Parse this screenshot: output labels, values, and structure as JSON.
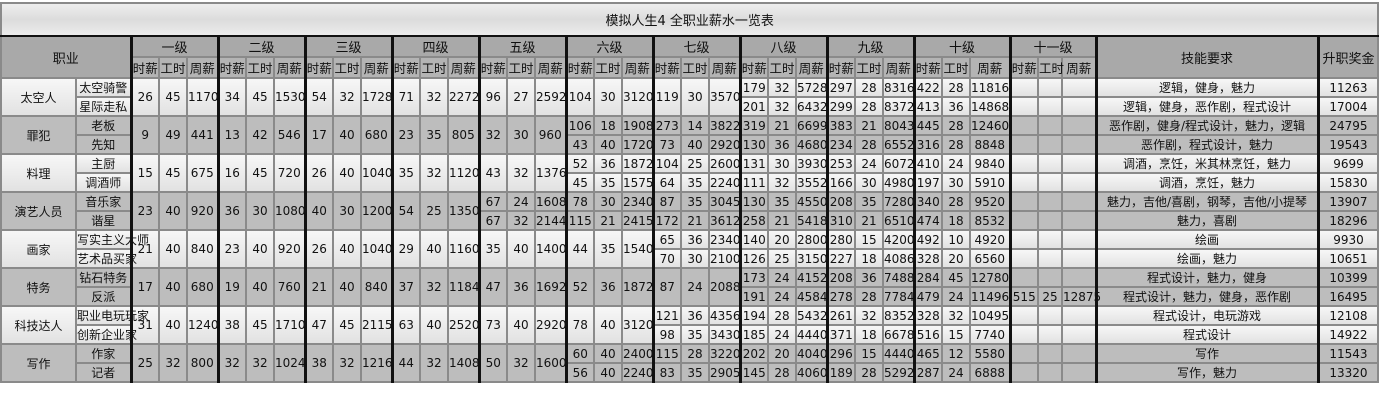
{
  "title": "模拟人生4 全职业薪水一览表",
  "headers": {
    "career": "职业",
    "levels": [
      "一级",
      "二级",
      "三级",
      "四级",
      "五级",
      "六级",
      "七级",
      "八级",
      "九级",
      "十级",
      "十一级"
    ],
    "sub": [
      "时薪",
      "工时",
      "周薪"
    ],
    "skills": "技能要求",
    "bonus": "升职奖金"
  },
  "careers": [
    {
      "name": "太空人",
      "jobs": [
        "太空骑警",
        "星际走私"
      ],
      "levels": [
        [
          [
            26,
            45,
            1170
          ]
        ],
        [
          [
            34,
            45,
            1530
          ]
        ],
        [
          [
            54,
            32,
            1728
          ]
        ],
        [
          [
            71,
            32,
            2272
          ]
        ],
        [
          [
            96,
            27,
            2592
          ]
        ],
        [
          [
            104,
            30,
            3120
          ]
        ],
        [
          [
            119,
            30,
            3570
          ]
        ],
        [
          [
            179,
            32,
            5728
          ],
          [
            201,
            32,
            6432
          ]
        ],
        [
          [
            297,
            28,
            8316
          ],
          [
            299,
            28,
            8372
          ]
        ],
        [
          [
            422,
            28,
            11816
          ],
          [
            413,
            36,
            14868
          ]
        ],
        [
          [],
          []
        ]
      ],
      "skills": [
        "逻辑，健身，魅力",
        "逻辑，健身，恶作剧，程式设计"
      ],
      "bonus": [
        "11263",
        "17004"
      ]
    },
    {
      "name": "罪犯",
      "jobs": [
        "老板",
        "先知"
      ],
      "levels": [
        [
          [
            9,
            49,
            441
          ]
        ],
        [
          [
            13,
            42,
            546
          ]
        ],
        [
          [
            17,
            40,
            680
          ]
        ],
        [
          [
            23,
            35,
            805
          ]
        ],
        [
          [
            32,
            30,
            960
          ]
        ],
        [
          [
            106,
            18,
            1908
          ],
          [
            43,
            40,
            1720
          ]
        ],
        [
          [
            273,
            14,
            3822
          ],
          [
            73,
            40,
            2920
          ]
        ],
        [
          [
            319,
            21,
            6699
          ],
          [
            130,
            36,
            4680
          ]
        ],
        [
          [
            383,
            21,
            8043
          ],
          [
            234,
            28,
            6552
          ]
        ],
        [
          [
            445,
            28,
            12460
          ],
          [
            316,
            28,
            8848
          ]
        ],
        [
          [],
          []
        ]
      ],
      "skills": [
        "恶作剧，健身/程式设计，魅力，逻辑",
        "恶作剧，程式设计，魅力"
      ],
      "bonus": [
        "24795",
        "19543"
      ]
    },
    {
      "name": "料理",
      "jobs": [
        "主厨",
        "调酒师"
      ],
      "levels": [
        [
          [
            15,
            45,
            675
          ]
        ],
        [
          [
            16,
            45,
            720
          ]
        ],
        [
          [
            26,
            40,
            1040
          ]
        ],
        [
          [
            35,
            32,
            1120
          ]
        ],
        [
          [
            43,
            32,
            1376
          ]
        ],
        [
          [
            52,
            36,
            1872
          ],
          [
            45,
            35,
            1575
          ]
        ],
        [
          [
            104,
            25,
            2600
          ],
          [
            64,
            35,
            2240
          ]
        ],
        [
          [
            131,
            30,
            3930
          ],
          [
            111,
            32,
            3552
          ]
        ],
        [
          [
            253,
            24,
            6072
          ],
          [
            166,
            30,
            4980
          ]
        ],
        [
          [
            410,
            24,
            9840
          ],
          [
            197,
            30,
            5910
          ]
        ],
        [
          [],
          []
        ]
      ],
      "skills": [
        "调酒，烹饪，米其林烹饪，魅力",
        "调酒，烹饪，魅力"
      ],
      "bonus": [
        "9699",
        "15830"
      ]
    },
    {
      "name": "演艺人员",
      "jobs": [
        "音乐家",
        "谐星"
      ],
      "levels": [
        [
          [
            23,
            40,
            920
          ]
        ],
        [
          [
            36,
            30,
            1080
          ]
        ],
        [
          [
            40,
            30,
            1200
          ]
        ],
        [
          [
            54,
            25,
            1350
          ]
        ],
        [
          [
            67,
            24,
            1608
          ],
          [
            67,
            32,
            2144
          ]
        ],
        [
          [
            78,
            30,
            2340
          ],
          [
            115,
            21,
            2415
          ]
        ],
        [
          [
            87,
            35,
            3045
          ],
          [
            172,
            21,
            3612
          ]
        ],
        [
          [
            130,
            35,
            4550
          ],
          [
            258,
            21,
            5418
          ]
        ],
        [
          [
            208,
            35,
            7280
          ],
          [
            310,
            21,
            6510
          ]
        ],
        [
          [
            340,
            28,
            9520
          ],
          [
            474,
            18,
            8532
          ]
        ],
        [
          [],
          []
        ]
      ],
      "skills": [
        "魅力，吉他/喜剧，钢琴，吉他/小提琴",
        "魅力，喜剧"
      ],
      "bonus": [
        "13907",
        "18296"
      ]
    },
    {
      "name": "画家",
      "jobs": [
        "写实主义大师",
        "艺术品买家"
      ],
      "levels": [
        [
          [
            21,
            40,
            840
          ]
        ],
        [
          [
            23,
            40,
            920
          ]
        ],
        [
          [
            26,
            40,
            1040
          ]
        ],
        [
          [
            29,
            40,
            1160
          ]
        ],
        [
          [
            35,
            40,
            1400
          ]
        ],
        [
          [
            44,
            35,
            1540
          ]
        ],
        [
          [
            65,
            36,
            2340
          ],
          [
            70,
            30,
            2100
          ]
        ],
        [
          [
            140,
            20,
            2800
          ],
          [
            126,
            25,
            3150
          ]
        ],
        [
          [
            280,
            15,
            4200
          ],
          [
            227,
            18,
            4086
          ]
        ],
        [
          [
            492,
            10,
            4920
          ],
          [
            328,
            20,
            6560
          ]
        ],
        [
          [],
          []
        ]
      ],
      "skills": [
        "绘画",
        "绘画，魅力"
      ],
      "bonus": [
        "9930",
        "10651"
      ]
    },
    {
      "name": "特务",
      "jobs": [
        "钻石特务",
        "反派"
      ],
      "levels": [
        [
          [
            17,
            40,
            680
          ]
        ],
        [
          [
            19,
            40,
            760
          ]
        ],
        [
          [
            21,
            40,
            840
          ]
        ],
        [
          [
            37,
            32,
            1184
          ]
        ],
        [
          [
            47,
            36,
            1692
          ]
        ],
        [
          [
            52,
            36,
            1872
          ]
        ],
        [
          [
            87,
            24,
            2088
          ]
        ],
        [
          [
            173,
            24,
            4152
          ],
          [
            191,
            24,
            4584
          ]
        ],
        [
          [
            208,
            36,
            7488
          ],
          [
            278,
            28,
            7784
          ]
        ],
        [
          [
            284,
            45,
            12780
          ],
          [
            479,
            24,
            11496
          ]
        ],
        [
          [],
          [
            515,
            25,
            12875
          ]
        ]
      ],
      "skills": [
        "程式设计，魅力，健身",
        "程式设计，魅力，健身，恶作剧"
      ],
      "bonus": [
        "10399",
        "16495"
      ]
    },
    {
      "name": "科技达人",
      "jobs": [
        "职业电玩玩家",
        "创新企业家"
      ],
      "levels": [
        [
          [
            31,
            40,
            1240
          ]
        ],
        [
          [
            38,
            45,
            1710
          ]
        ],
        [
          [
            47,
            45,
            2115
          ]
        ],
        [
          [
            63,
            40,
            2520
          ]
        ],
        [
          [
            73,
            40,
            2920
          ]
        ],
        [
          [
            78,
            40,
            3120
          ]
        ],
        [
          [
            121,
            36,
            4356
          ],
          [
            98,
            35,
            3430
          ]
        ],
        [
          [
            194,
            28,
            5432
          ],
          [
            185,
            24,
            4440
          ]
        ],
        [
          [
            261,
            32,
            8352
          ],
          [
            371,
            18,
            6678
          ]
        ],
        [
          [
            328,
            32,
            10495
          ],
          [
            516,
            15,
            7740
          ]
        ],
        [
          [],
          []
        ]
      ],
      "skills": [
        "程式设计，电玩游戏",
        "程式设计"
      ],
      "bonus": [
        "12108",
        "14922"
      ]
    },
    {
      "name": "写作",
      "jobs": [
        "作家",
        "记者"
      ],
      "levels": [
        [
          [
            25,
            32,
            800
          ]
        ],
        [
          [
            32,
            32,
            1024
          ]
        ],
        [
          [
            38,
            32,
            1216
          ]
        ],
        [
          [
            44,
            32,
            1408
          ]
        ],
        [
          [
            50,
            32,
            1600
          ]
        ],
        [
          [
            60,
            40,
            2400
          ],
          [
            56,
            40,
            2240
          ]
        ],
        [
          [
            115,
            28,
            3220
          ],
          [
            83,
            35,
            2905
          ]
        ],
        [
          [
            202,
            20,
            4040
          ],
          [
            145,
            28,
            4060
          ]
        ],
        [
          [
            296,
            15,
            4440
          ],
          [
            189,
            28,
            5292
          ]
        ],
        [
          [
            465,
            12,
            5580
          ],
          [
            287,
            24,
            6888
          ]
        ],
        [
          [],
          []
        ]
      ],
      "skills": [
        "写作",
        "写作，魅力"
      ],
      "bonus": [
        "11543",
        "13320"
      ]
    }
  ],
  "colors": {
    "header": "#a9a9a9",
    "row_dark": "#bdbdbd",
    "row_light": "#f0f0f0",
    "group_border": "#111111"
  }
}
